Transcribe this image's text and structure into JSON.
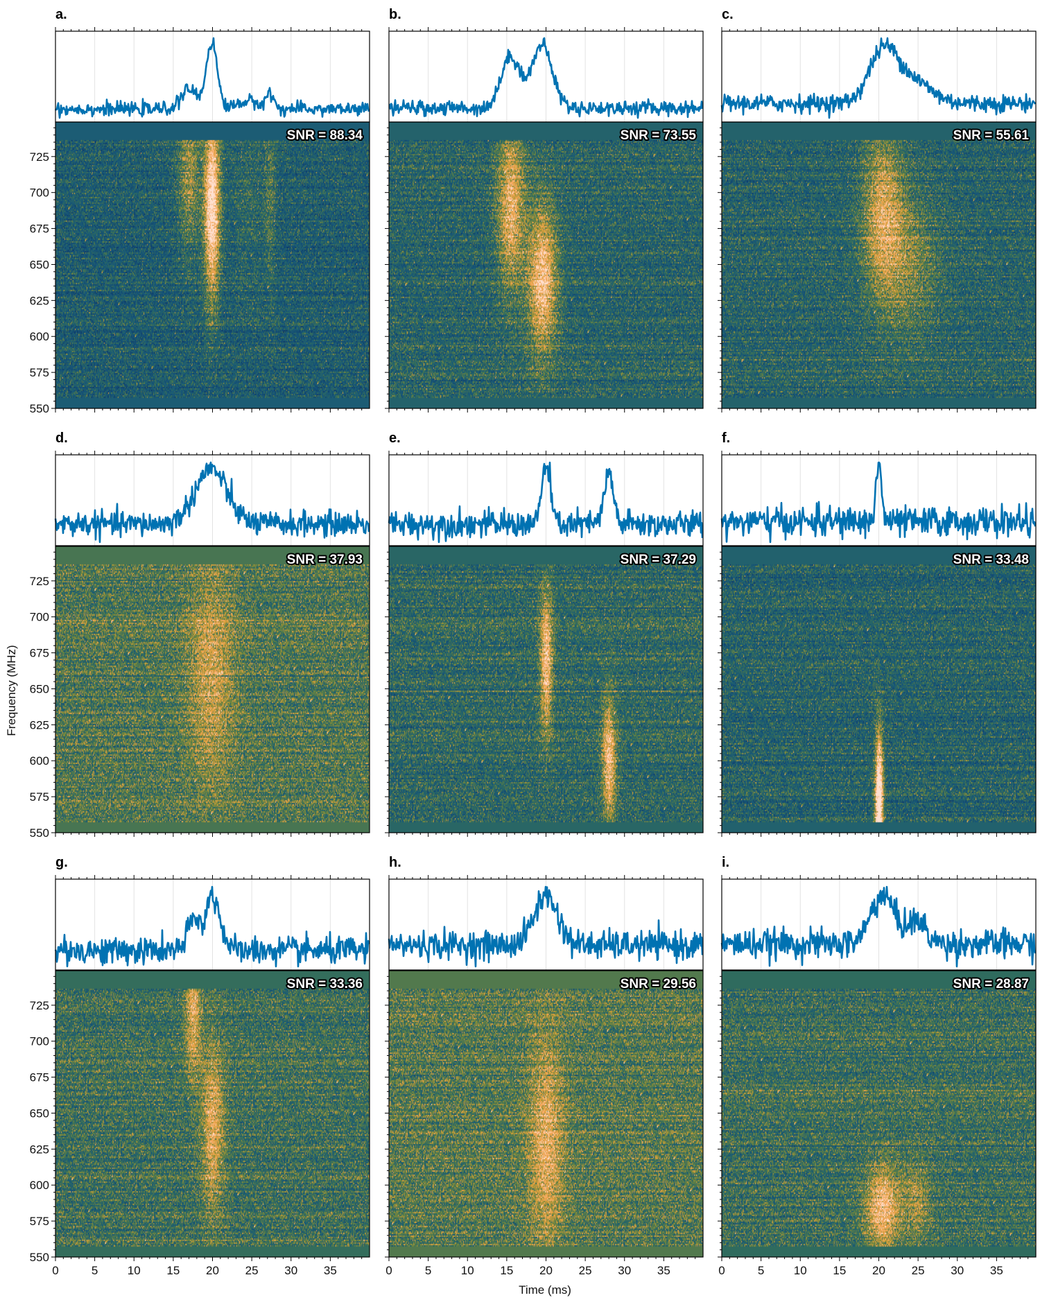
{
  "chart_data": {
    "type": "heatmap",
    "description_kind": "dynamic spectra with pulse profiles",
    "xlabel": "Time (ms)",
    "ylabel": "Frequency (MHz)",
    "xlim": [
      0,
      40
    ],
    "ylim": [
      550,
      749
    ],
    "xticks": [
      0,
      5,
      10,
      15,
      20,
      25,
      30,
      35
    ],
    "yticks": [
      550,
      575,
      600,
      625,
      650,
      675,
      700,
      725
    ],
    "profile_color": "#0072b2",
    "colormap": [
      "#0c3566",
      "#17587a",
      "#2f6b5e",
      "#7a8a3a",
      "#dca03a",
      "#f6a860",
      "#ffe0d0"
    ],
    "panels": [
      {
        "label": "a.",
        "snr_label": "SNR = 88.34",
        "snr": 88.34,
        "components": [
          {
            "t": 19.9,
            "w": 0.7,
            "fpk": 690,
            "fw": 45,
            "amp": 0.75
          },
          {
            "t": 17,
            "w": 1.0,
            "fpk": 715,
            "fw": 40,
            "amp": 0.3
          },
          {
            "t": 27.3,
            "w": 0.5,
            "fpk": 700,
            "fw": 50,
            "amp": 0.16
          },
          {
            "t": 24.5,
            "w": 1.5,
            "fpk": 690,
            "fw": 50,
            "amp": 0.08
          }
        ]
      },
      {
        "label": "b.",
        "snr_label": "SNR = 73.55",
        "snr": 73.55,
        "components": [
          {
            "t": 15.5,
            "w": 1.2,
            "fpk": 690,
            "fw": 40,
            "amp": 0.45
          },
          {
            "t": 19.5,
            "w": 1.3,
            "fpk": 640,
            "fw": 35,
            "amp": 0.55
          }
        ]
      },
      {
        "label": "c.",
        "snr_label": "SNR = 55.61",
        "snr": 55.61,
        "components": [
          {
            "t": 20.5,
            "w": 1.8,
            "fpk": 685,
            "fw": 40,
            "amp": 0.4
          },
          {
            "t": 24,
            "w": 2.5,
            "fpk": 650,
            "fw": 35,
            "amp": 0.2
          }
        ]
      },
      {
        "label": "d.",
        "snr_label": "SNR = 37.93",
        "snr": 37.93,
        "components": [
          {
            "t": 19.8,
            "w": 2.0,
            "fpk": 660,
            "fw": 50,
            "amp": 0.25
          }
        ]
      },
      {
        "label": "e.",
        "snr_label": "SNR = 37.29",
        "snr": 37.29,
        "components": [
          {
            "t": 20,
            "w": 0.55,
            "fpk": 670,
            "fw": 35,
            "amp": 0.5
          },
          {
            "t": 28,
            "w": 0.6,
            "fpk": 600,
            "fw": 30,
            "amp": 0.5
          }
        ]
      },
      {
        "label": "f.",
        "snr_label": "SNR = 33.48",
        "snr": 33.48,
        "components": [
          {
            "t": 20,
            "w": 0.35,
            "fpk": 570,
            "fw": 35,
            "amp": 0.9
          }
        ]
      },
      {
        "label": "g.",
        "snr_label": "SNR = 33.36",
        "snr": 33.36,
        "components": [
          {
            "t": 17.5,
            "w": 0.7,
            "fpk": 720,
            "fw": 30,
            "amp": 0.35
          },
          {
            "t": 20,
            "w": 1.0,
            "fpk": 640,
            "fw": 40,
            "amp": 0.35
          }
        ]
      },
      {
        "label": "h.",
        "snr_label": "SNR = 29.56",
        "snr": 29.56,
        "components": [
          {
            "t": 20,
            "w": 1.5,
            "fpk": 630,
            "fw": 50,
            "amp": 0.3
          }
        ]
      },
      {
        "label": "i.",
        "snr_label": "SNR = 28.87",
        "snr": 28.87,
        "components": [
          {
            "t": 20.5,
            "w": 1.5,
            "fpk": 585,
            "fw": 20,
            "amp": 0.45
          },
          {
            "t": 24.8,
            "w": 1.2,
            "fpk": 590,
            "fw": 20,
            "amp": 0.2
          }
        ]
      }
    ]
  }
}
